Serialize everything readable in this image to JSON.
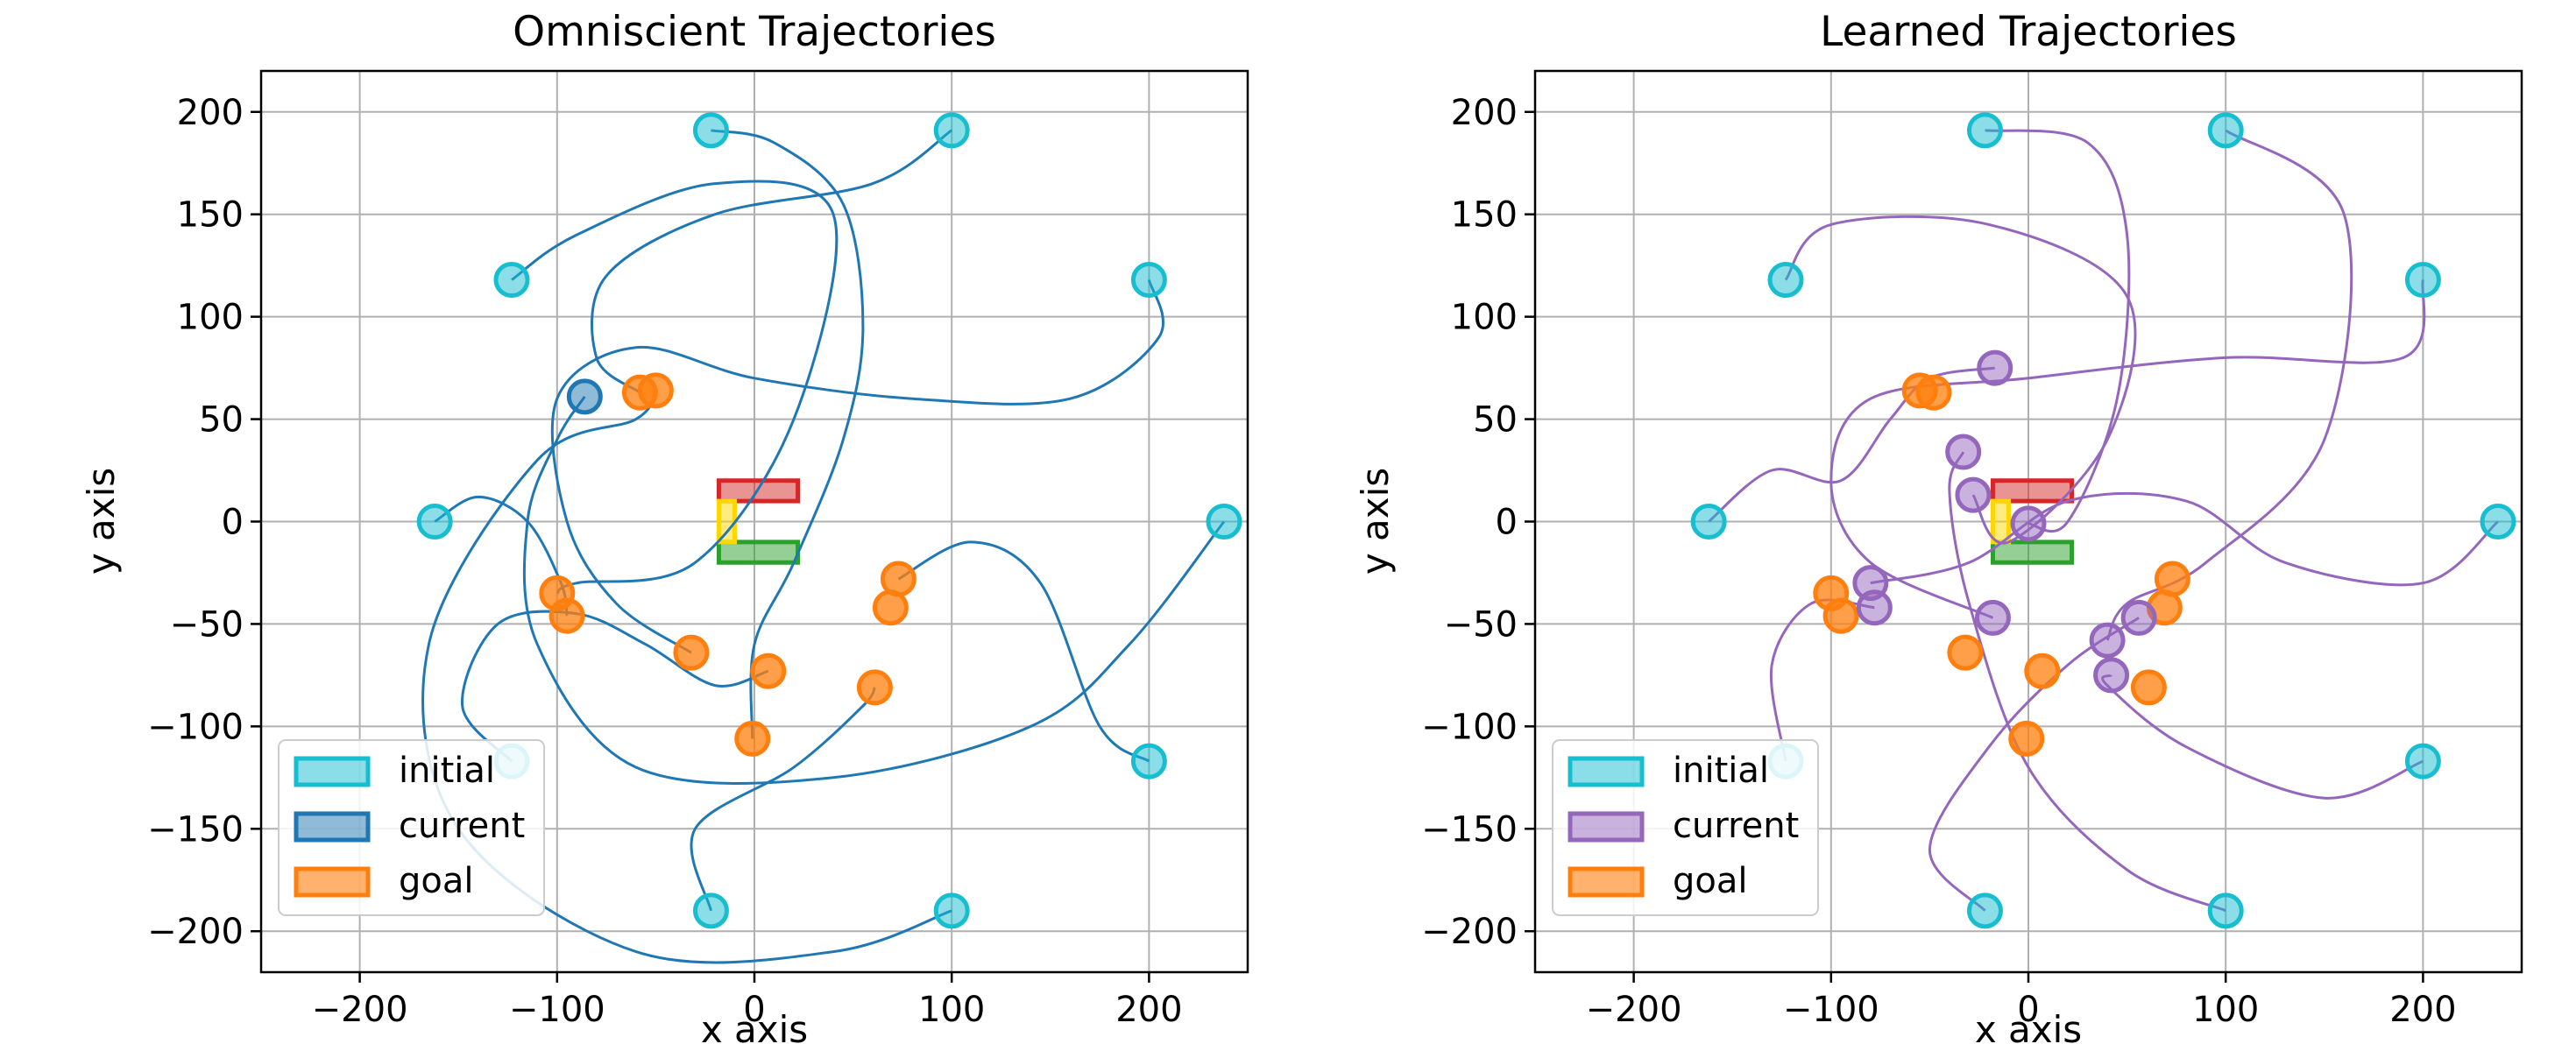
{
  "figure": {
    "background": "#ffffff"
  },
  "chart_data": [
    {
      "type": "scatter",
      "title": "Omniscient Trajectories",
      "xlabel": "x axis",
      "ylabel": "y axis",
      "xlim": [
        -250,
        250
      ],
      "ylim": [
        -220,
        220
      ],
      "xticks": [
        -200,
        -100,
        0,
        100,
        200
      ],
      "yticks": [
        -200,
        -150,
        -100,
        -50,
        0,
        50,
        100,
        150,
        200
      ],
      "xtick_labels": [
        "−200",
        "−100",
        "0",
        "100",
        "200"
      ],
      "ytick_labels": [
        "−200",
        "−150",
        "−100",
        "−50",
        "0",
        "50",
        "100",
        "150",
        "200"
      ],
      "grid": true,
      "legend_position": "bottom-left",
      "legend": [
        {
          "label": "initial",
          "color": "#17becf"
        },
        {
          "label": "current",
          "color": "#1f77b4"
        },
        {
          "label": "goal",
          "color": "#ff7f0e"
        }
      ],
      "trajectory_color": "#1f77b4",
      "current_color": "#1f77b4",
      "initial": [
        [
          -22,
          191
        ],
        [
          100,
          191
        ],
        [
          -123,
          118
        ],
        [
          200,
          118
        ],
        [
          -162,
          0
        ],
        [
          238,
          0
        ],
        [
          -123,
          -117
        ],
        [
          200,
          -117
        ],
        [
          -22,
          -190
        ],
        [
          100,
          -190
        ]
      ],
      "current": [
        [
          -86,
          61
        ]
      ],
      "goal": [
        [
          -58,
          63
        ],
        [
          -50,
          64
        ],
        [
          -100,
          -35
        ],
        [
          -95,
          -46
        ],
        [
          -32,
          -64
        ],
        [
          7,
          -73
        ],
        [
          -1,
          -106
        ],
        [
          61,
          -81
        ],
        [
          73,
          -28
        ],
        [
          69,
          -42
        ]
      ],
      "trajectories": [
        [
          [
            -22,
            191
          ],
          [
            10,
            185
          ],
          [
            45,
            155
          ],
          [
            55,
            95
          ],
          [
            45,
            40
          ],
          [
            20,
            -20
          ],
          [
            0,
            -60
          ],
          [
            -1,
            -106
          ]
        ],
        [
          [
            100,
            191
          ],
          [
            60,
            165
          ],
          [
            -20,
            150
          ],
          [
            -75,
            120
          ],
          [
            -80,
            80
          ],
          [
            -58,
            63
          ]
        ],
        [
          [
            -123,
            118
          ],
          [
            -90,
            140
          ],
          [
            -20,
            165
          ],
          [
            40,
            150
          ],
          [
            20,
            50
          ],
          [
            -30,
            -20
          ],
          [
            -90,
            -30
          ],
          [
            -100,
            -35
          ]
        ],
        [
          [
            200,
            118
          ],
          [
            205,
            90
          ],
          [
            160,
            60
          ],
          [
            80,
            60
          ],
          [
            0,
            70
          ],
          [
            -60,
            85
          ],
          [
            -100,
            60
          ],
          [
            -95,
            0
          ],
          [
            -70,
            -40
          ],
          [
            -32,
            -64
          ]
        ],
        [
          [
            -162,
            0
          ],
          [
            -140,
            12
          ],
          [
            -115,
            0
          ],
          [
            -98,
            -30
          ],
          [
            -95,
            -46
          ]
        ],
        [
          [
            238,
            0
          ],
          [
            190,
            -60
          ],
          [
            140,
            -100
          ],
          [
            40,
            -125
          ],
          [
            -60,
            -120
          ],
          [
            -110,
            -60
          ],
          [
            -115,
            0
          ],
          [
            -100,
            40
          ],
          [
            -86,
            61
          ]
        ],
        [
          [
            -123,
            -117
          ],
          [
            -148,
            -90
          ],
          [
            -130,
            -50
          ],
          [
            -90,
            -45
          ],
          [
            -55,
            -60
          ],
          [
            -20,
            -80
          ],
          [
            7,
            -73
          ]
        ],
        [
          [
            200,
            -117
          ],
          [
            175,
            -100
          ],
          [
            145,
            -30
          ],
          [
            110,
            -10
          ],
          [
            73,
            -28
          ]
        ],
        [
          [
            -22,
            -190
          ],
          [
            -30,
            -150
          ],
          [
            20,
            -120
          ],
          [
            55,
            -90
          ],
          [
            61,
            -81
          ]
        ],
        [
          [
            100,
            -190
          ],
          [
            40,
            -210
          ],
          [
            -60,
            -210
          ],
          [
            -150,
            -150
          ],
          [
            -165,
            -60
          ],
          [
            -110,
            30
          ],
          [
            -60,
            50
          ],
          [
            -50,
            64
          ]
        ]
      ],
      "obstacles": [
        {
          "color": "#d62728",
          "x": [
            -18,
            22
          ],
          "y": [
            10,
            20
          ]
        },
        {
          "color": "#2ca02c",
          "x": [
            -18,
            22
          ],
          "y": [
            -20,
            -10
          ]
        },
        {
          "color": "#ffd700",
          "x": [
            -18,
            -10
          ],
          "y": [
            -10,
            10
          ]
        }
      ]
    },
    {
      "type": "scatter",
      "title": "Learned Trajectories",
      "xlabel": "x axis",
      "ylabel": "y axis",
      "xlim": [
        -250,
        250
      ],
      "ylim": [
        -220,
        220
      ],
      "xticks": [
        -200,
        -100,
        0,
        100,
        200
      ],
      "yticks": [
        -200,
        -150,
        -100,
        -50,
        0,
        50,
        100,
        150,
        200
      ],
      "xtick_labels": [
        "−200",
        "−100",
        "0",
        "100",
        "200"
      ],
      "ytick_labels": [
        "−200",
        "−150",
        "−100",
        "−50",
        "0",
        "50",
        "100",
        "150",
        "200"
      ],
      "grid": true,
      "legend_position": "bottom-left",
      "legend": [
        {
          "label": "initial",
          "color": "#17becf"
        },
        {
          "label": "current",
          "color": "#9467bd"
        },
        {
          "label": "goal",
          "color": "#ff7f0e"
        }
      ],
      "trajectory_color": "#9467bd",
      "current_color": "#9467bd",
      "initial": [
        [
          -22,
          191
        ],
        [
          100,
          191
        ],
        [
          -123,
          118
        ],
        [
          200,
          118
        ],
        [
          -162,
          0
        ],
        [
          238,
          0
        ],
        [
          -123,
          -117
        ],
        [
          200,
          -117
        ],
        [
          -22,
          -190
        ],
        [
          100,
          -190
        ]
      ],
      "current": [
        [
          -17,
          75
        ],
        [
          -33,
          34
        ],
        [
          -28,
          13
        ],
        [
          0,
          -1
        ],
        [
          -80,
          -30
        ],
        [
          -78,
          -42
        ],
        [
          -18,
          -47
        ],
        [
          40,
          -58
        ],
        [
          56,
          -47
        ],
        [
          42,
          -75
        ]
      ],
      "goal": [
        [
          -48,
          63
        ],
        [
          -55,
          64
        ],
        [
          -100,
          -35
        ],
        [
          -95,
          -46
        ],
        [
          -32,
          -64
        ],
        [
          7,
          -73
        ],
        [
          -1,
          -106
        ],
        [
          61,
          -81
        ],
        [
          73,
          -28
        ],
        [
          69,
          -42
        ]
      ],
      "trajectories": [
        [
          [
            -22,
            191
          ],
          [
            30,
            185
          ],
          [
            50,
            140
          ],
          [
            45,
            60
          ],
          [
            20,
            0
          ],
          [
            0,
            -1
          ]
        ],
        [
          [
            100,
            191
          ],
          [
            160,
            150
          ],
          [
            150,
            40
          ],
          [
            90,
            -20
          ],
          [
            50,
            -40
          ],
          [
            40,
            -58
          ]
        ],
        [
          [
            -123,
            118
          ],
          [
            -100,
            145
          ],
          [
            -20,
            145
          ],
          [
            50,
            110
          ],
          [
            40,
            40
          ],
          [
            -10,
            -10
          ],
          [
            -28,
            13
          ]
        ],
        [
          [
            200,
            118
          ],
          [
            190,
            80
          ],
          [
            100,
            80
          ],
          [
            0,
            70
          ],
          [
            -80,
            60
          ],
          [
            -100,
            20
          ],
          [
            -80,
            -20
          ],
          [
            -18,
            -47
          ]
        ],
        [
          [
            -162,
            0
          ],
          [
            -130,
            25
          ],
          [
            -95,
            20
          ],
          [
            -70,
            50
          ],
          [
            -50,
            70
          ],
          [
            -17,
            75
          ]
        ],
        [
          [
            238,
            0
          ],
          [
            200,
            -30
          ],
          [
            130,
            -20
          ],
          [
            80,
            10
          ],
          [
            20,
            10
          ],
          [
            -30,
            -20
          ],
          [
            -80,
            -30
          ]
        ],
        [
          [
            -123,
            -117
          ],
          [
            -130,
            -70
          ],
          [
            -110,
            -40
          ],
          [
            -78,
            -42
          ]
        ],
        [
          [
            200,
            -117
          ],
          [
            150,
            -135
          ],
          [
            80,
            -110
          ],
          [
            40,
            -80
          ],
          [
            42,
            -75
          ]
        ],
        [
          [
            -22,
            -190
          ],
          [
            -50,
            -160
          ],
          [
            -20,
            -110
          ],
          [
            20,
            -70
          ],
          [
            56,
            -47
          ]
        ],
        [
          [
            100,
            -190
          ],
          [
            50,
            -170
          ],
          [
            0,
            -120
          ],
          [
            -30,
            -40
          ],
          [
            -40,
            15
          ],
          [
            -33,
            34
          ]
        ]
      ],
      "obstacles": [
        {
          "color": "#d62728",
          "x": [
            -18,
            22
          ],
          "y": [
            10,
            20
          ]
        },
        {
          "color": "#2ca02c",
          "x": [
            -18,
            22
          ],
          "y": [
            -20,
            -10
          ]
        },
        {
          "color": "#ffd700",
          "x": [
            -18,
            -10
          ],
          "y": [
            -10,
            10
          ]
        }
      ]
    }
  ]
}
